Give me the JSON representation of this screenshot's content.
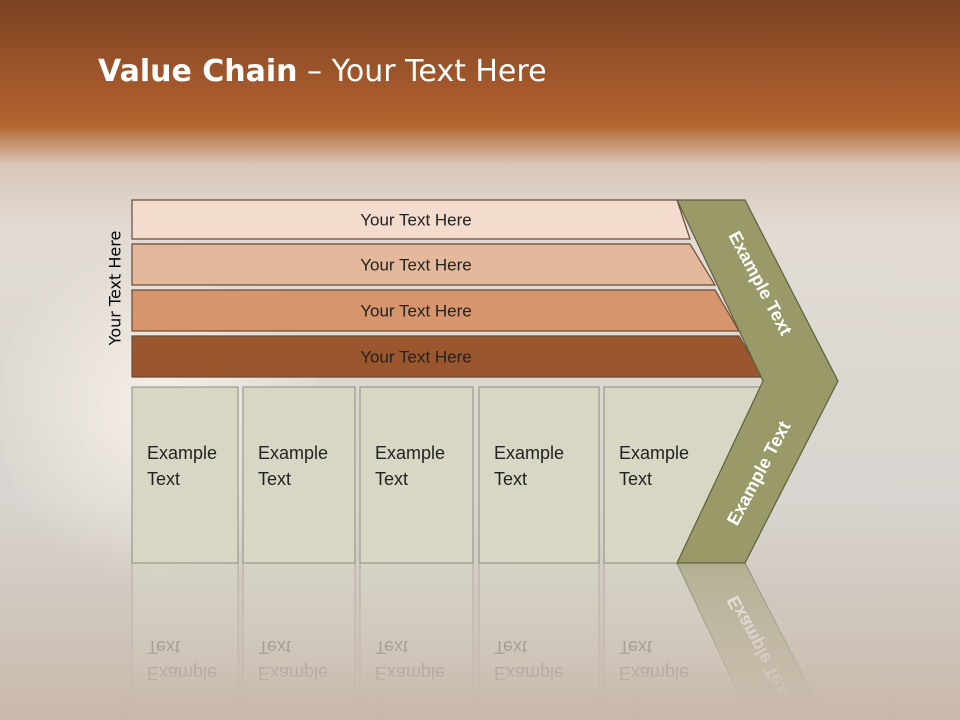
{
  "title": {
    "bold": "Value Chain",
    "rest": " – Your Text Here"
  },
  "side_label": "Your Text Here",
  "bars": [
    {
      "label": "Your Text Here",
      "color": "#f3dccd"
    },
    {
      "label": "Your Text Here",
      "color": "#e4b89b"
    },
    {
      "label": "Your Text Here",
      "color": "#d6956c"
    },
    {
      "label": "Your Text Here",
      "color": "#9a562d"
    }
  ],
  "columns": [
    {
      "line1": "Example",
      "line2": "Text"
    },
    {
      "line1": "Example",
      "line2": "Text"
    },
    {
      "line1": "Example",
      "line2": "Text"
    },
    {
      "line1": "Example",
      "line2": "Text"
    },
    {
      "line1": "Example",
      "line2": "Text"
    }
  ],
  "chevron": {
    "top_label": "Example Text",
    "bottom_label": "Example Text",
    "color": "#999a68"
  },
  "column_color": "#d7d7c4"
}
